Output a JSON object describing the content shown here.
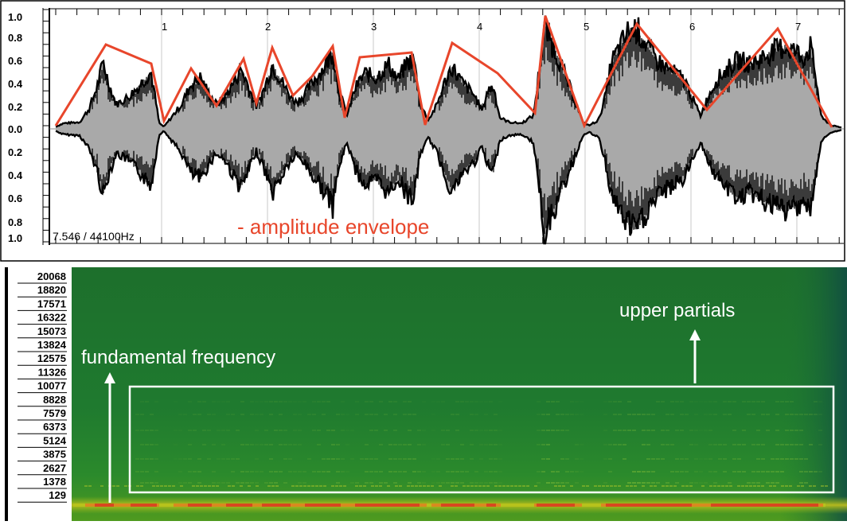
{
  "waveform": {
    "y_labels_top": [
      "1.0",
      "0.8",
      "0.6",
      "0.4",
      "0.2",
      "0.0"
    ],
    "y_labels_bottom": [
      "0.2",
      "0.4",
      "0.6",
      "0.8",
      "1.0"
    ],
    "time_labels": [
      "1",
      "2",
      "3",
      "4",
      "5",
      "6",
      "7"
    ],
    "sample_info": "7.546 / 44100Hz",
    "envelope_label": "- amplitude envelope",
    "envelope_color": "#e8462b",
    "wave_color": "#000000",
    "fill_color": "#a9a9a9"
  },
  "spectrogram": {
    "freq_labels": [
      "20068",
      "18820",
      "17571",
      "16322",
      "15073",
      "13824",
      "12575",
      "11326",
      "10077",
      "8828",
      "7579",
      "6373",
      "5124",
      "3875",
      "2627",
      "1378",
      "129"
    ],
    "fundamental_label": "fundamental frequency",
    "partials_label": "upper partials",
    "background_color": "#1f7a2e",
    "fundamental_color": "#d9471f"
  }
}
